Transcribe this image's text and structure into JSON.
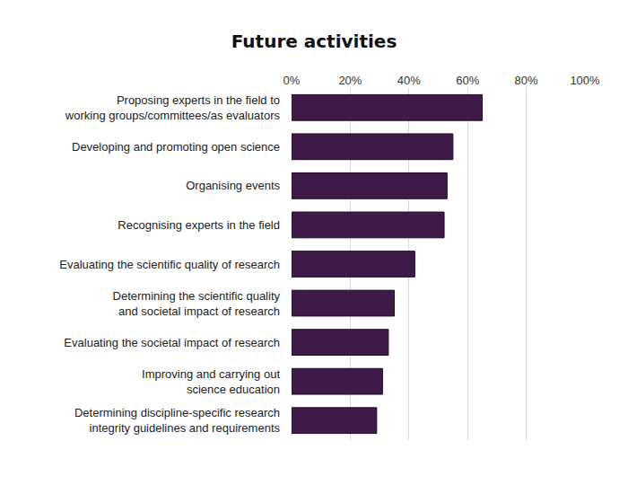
{
  "chart_data": {
    "type": "bar",
    "title": "Future activities",
    "orientation": "horizontal",
    "categories": [
      "Proposing experts in the field to\nworking groups/committees/as evaluators",
      "Developing and promoting open science",
      "Organising events",
      "Recognising experts in the field",
      "Evaluating the scientific quality of research",
      "Determining the scientific quality\nand societal impact of research",
      "Evaluating the societal impact of research",
      "Improving and carrying out\nscience education",
      "Determining discipline-specific research\nintegrity guidelines and requirements"
    ],
    "values": [
      65,
      55,
      53,
      52,
      42,
      35,
      33,
      31,
      29
    ],
    "color": "#3d1a47",
    "xlim": [
      0,
      100
    ],
    "xticks": [
      {
        "value": 0,
        "label": "0%"
      },
      {
        "value": 20,
        "label": "20%"
      },
      {
        "value": 40,
        "label": "40%"
      },
      {
        "value": 60,
        "label": "60%"
      },
      {
        "value": 80,
        "label": "80%"
      },
      {
        "value": 100,
        "label": "100%"
      }
    ],
    "grid": true
  }
}
